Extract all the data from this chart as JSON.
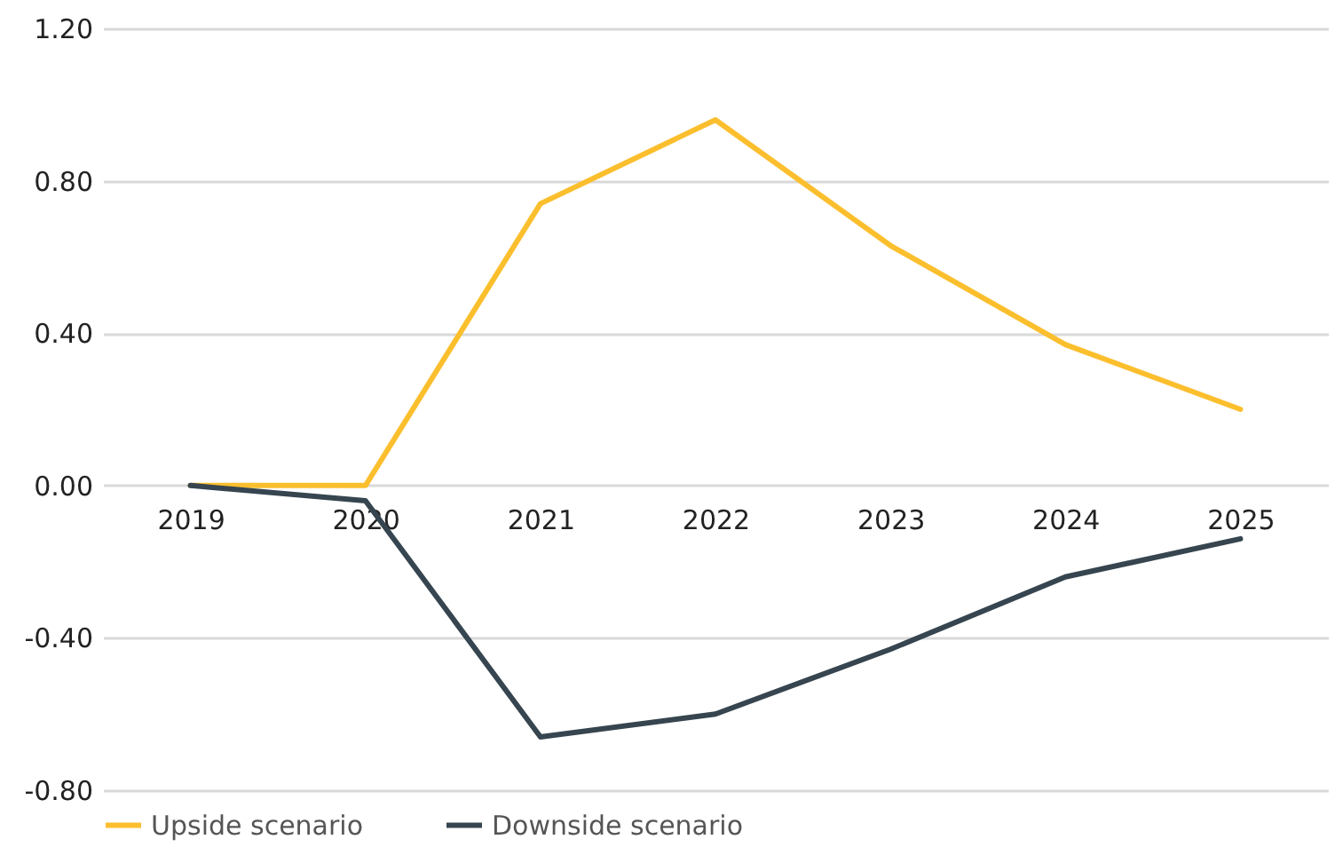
{
  "chart_data": {
    "type": "line",
    "categories": [
      "2019",
      "2020",
      "2021",
      "2022",
      "2023",
      "2024",
      "2025"
    ],
    "series": [
      {
        "name": "Upside scenario",
        "color": "#fbbf2e",
        "values": [
          0,
          0,
          0.74,
          0.96,
          0.63,
          0.37,
          0.2
        ]
      },
      {
        "name": "Downside scenario",
        "color": "#36454f",
        "values": [
          0,
          -0.04,
          -0.66,
          -0.6,
          -0.43,
          -0.24,
          -0.14
        ]
      }
    ],
    "ylim": [
      -0.8,
      1.2
    ],
    "yticks": [
      {
        "value": -0.8,
        "label": "-0.80"
      },
      {
        "value": -0.4,
        "label": "-0.40"
      },
      {
        "value": 0,
        "label": "0.00"
      },
      {
        "value": 0.4,
        "label": "0.40"
      },
      {
        "value": 0.8,
        "label": "0.80"
      },
      {
        "value": 1.2,
        "label": "1.20"
      }
    ],
    "grid": "y",
    "legend": "bottom",
    "marker": "none",
    "line_style": "solid"
  }
}
